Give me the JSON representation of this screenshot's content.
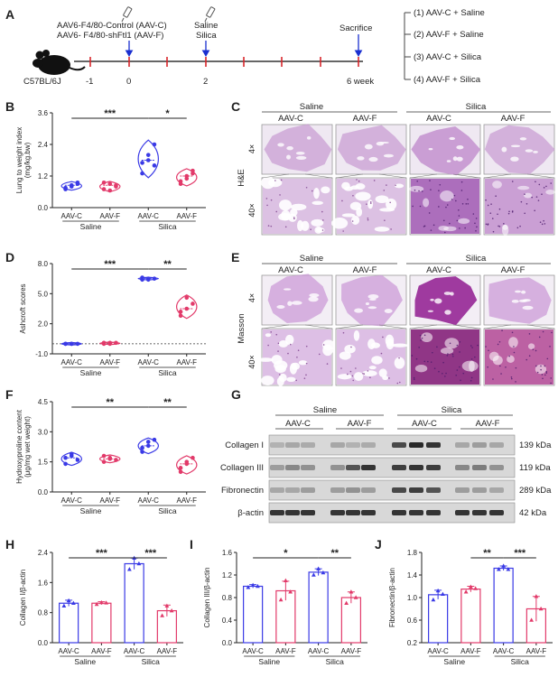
{
  "colors": {
    "aav_c": "#3a3ae6",
    "aav_f": "#e23a6a",
    "he_bg": "#efe8f2",
    "he_tissue": "#c79ad2",
    "masson_bg": "#f3eef5",
    "masson_tissue": "#c995d6",
    "masson_fibrotic": "#9a2f9a"
  },
  "panels": {
    "A": {
      "letter": "A",
      "left_label_1": "AAV6-F4/80-Control (AAV-C)",
      "left_label_2": "AAV6- F4/80-shFtl1 (AAV-F)",
      "mid_label_1": "Saline",
      "mid_label_2": "Silica",
      "right_label": "Sacrifice",
      "strain": "C57BL/6J",
      "ticks": [
        "-1",
        "0",
        "2",
        "6 week"
      ],
      "groups": [
        "(1) AAV-C + Saline",
        "(2) AAV-F + Saline",
        "(3) AAV-C + Silica",
        "(4) AAV-F + Silica"
      ]
    },
    "B": {
      "letter": "B"
    },
    "C": {
      "letter": "C"
    },
    "D": {
      "letter": "D"
    },
    "E": {
      "letter": "E"
    },
    "F": {
      "letter": "F"
    },
    "G": {
      "letter": "G"
    },
    "H": {
      "letter": "H"
    },
    "I": {
      "letter": "I"
    },
    "J": {
      "letter": "J"
    },
    "histo": {
      "group_saline": "Saline",
      "group_silica": "Silica",
      "cols": [
        "AAV-C",
        "AAV-F",
        "AAV-C",
        "AAV-F"
      ],
      "mag_low": "4×",
      "mag_high": "40×",
      "stain_c": "H&E",
      "stain_e": "Masson"
    },
    "blot": {
      "group_saline": "Saline",
      "group_silica": "Silica",
      "cols": [
        "AAV-C",
        "AAV-F",
        "AAV-C",
        "AAV-F"
      ],
      "rows": [
        {
          "name": "Collagen I",
          "kda": "139 kDa"
        },
        {
          "name": "Collagen III",
          "kda": "119 kDa"
        },
        {
          "name": "Fibronectin",
          "kda": "289 kDa"
        },
        {
          "name": "β-actin",
          "kda": "42 kDa"
        }
      ]
    }
  },
  "chart_data": [
    {
      "panel": "B",
      "type": "violin",
      "ylabel": "Lung to weight index\n(mg/kg.bw)",
      "ylim": [
        0,
        3.6
      ],
      "yticks": [
        "0.0",
        "1.2",
        "2.4",
        "3.6"
      ],
      "categories": [
        "AAV-C",
        "AAV-F",
        "AAV-C",
        "AAV-F"
      ],
      "groups": [
        "Saline",
        "Silica"
      ],
      "values": [
        [
          0.7,
          0.85,
          0.95,
          0.75,
          0.8,
          0.9
        ],
        [
          0.7,
          0.9,
          0.8,
          0.95,
          0.65,
          0.85
        ],
        [
          1.3,
          1.8,
          2.4,
          1.7,
          2.0,
          1.6
        ],
        [
          1.0,
          1.2,
          1.4,
          0.9,
          1.1,
          1.3
        ]
      ],
      "significance": [
        {
          "from": 0,
          "to": 2,
          "label": "***"
        },
        {
          "from": 2,
          "to": 3,
          "label": "*"
        }
      ]
    },
    {
      "panel": "D",
      "type": "violin",
      "ylabel": "Ashcroft scores",
      "ylim": [
        -1,
        8
      ],
      "yticks": [
        "-1.0",
        "2.0",
        "5.0",
        "8.0"
      ],
      "categories": [
        "AAV-C",
        "AAV-F",
        "AAV-C",
        "AAV-F"
      ],
      "groups": [
        "Saline",
        "Silica"
      ],
      "values": [
        [
          0.0,
          0.0,
          0.0,
          0.0,
          0.0
        ],
        [
          0.1,
          0.0,
          0.1,
          0.0,
          0.1
        ],
        [
          6.4,
          6.5,
          6.5,
          6.6,
          6.4
        ],
        [
          2.8,
          3.5,
          4.0,
          3.2,
          4.6
        ]
      ],
      "significance": [
        {
          "from": 0,
          "to": 2,
          "label": "***"
        },
        {
          "from": 2,
          "to": 3,
          "label": "**"
        }
      ]
    },
    {
      "panel": "F",
      "type": "violin",
      "ylabel": "Hydroxyproline content\n(μg/mg wet weight)",
      "ylim": [
        0,
        4.5
      ],
      "yticks": [
        "0.0",
        "1.5",
        "3.0",
        "4.5"
      ],
      "categories": [
        "AAV-C",
        "AAV-F",
        "AAV-C",
        "AAV-F"
      ],
      "groups": [
        "Saline",
        "Silica"
      ],
      "values": [
        [
          1.4,
          1.8,
          1.6,
          1.7,
          1.9
        ],
        [
          1.5,
          1.7,
          1.6,
          1.8,
          1.65
        ],
        [
          2.0,
          2.3,
          2.6,
          2.2,
          2.5
        ],
        [
          1.0,
          1.4,
          1.7,
          1.2,
          1.5
        ]
      ],
      "significance": [
        {
          "from": 0,
          "to": 2,
          "label": "**"
        },
        {
          "from": 2,
          "to": 3,
          "label": "**"
        }
      ]
    },
    {
      "panel": "H",
      "type": "bar",
      "ylabel": "Collagen I/β-actin",
      "ylim": [
        0,
        2.4
      ],
      "yticks": [
        "0.0",
        "0.8",
        "1.6",
        "2.4"
      ],
      "categories": [
        "AAV-C",
        "AAV-F",
        "AAV-C",
        "AAV-F"
      ],
      "groups": [
        "Saline",
        "Silica"
      ],
      "values": [
        1.05,
        1.05,
        2.1,
        0.85
      ],
      "errors": [
        0.08,
        0.04,
        0.15,
        0.15
      ],
      "points": [
        [
          0.98,
          1.12,
          1.05
        ],
        [
          1.02,
          1.07,
          1.06
        ],
        [
          1.95,
          2.25,
          2.1
        ],
        [
          0.72,
          0.98,
          0.85
        ]
      ],
      "significance": [
        {
          "from": 0,
          "to": 2,
          "label": "***"
        },
        {
          "from": 2,
          "to": 3,
          "label": "***"
        }
      ]
    },
    {
      "panel": "I",
      "type": "bar",
      "ylabel": "Collagen III/β-actin",
      "ylim": [
        0,
        1.6
      ],
      "yticks": [
        "0.0",
        "0.4",
        "0.8",
        "1.2",
        "1.6"
      ],
      "categories": [
        "AAV-C",
        "AAV-F",
        "AAV-C",
        "AAV-F"
      ],
      "groups": [
        "Saline",
        "Silica"
      ],
      "values": [
        1.0,
        0.92,
        1.25,
        0.8
      ],
      "errors": [
        0.03,
        0.17,
        0.06,
        0.1
      ],
      "points": [
        [
          0.98,
          1.02,
          1.0
        ],
        [
          0.76,
          1.1,
          0.9
        ],
        [
          1.2,
          1.31,
          1.24
        ],
        [
          0.7,
          0.9,
          0.8
        ]
      ],
      "significance": [
        {
          "from": 0,
          "to": 2,
          "label": "*"
        },
        {
          "from": 2,
          "to": 3,
          "label": "**"
        }
      ]
    },
    {
      "panel": "J",
      "type": "bar",
      "ylabel": "Fibronectin/β-actin",
      "ylim": [
        0.2,
        1.8
      ],
      "yticks": [
        "0.2",
        "0.6",
        "1.0",
        "1.4",
        "1.8"
      ],
      "categories": [
        "AAV-C",
        "AAV-F",
        "AAV-C",
        "AAV-F"
      ],
      "groups": [
        "Saline",
        "Silica"
      ],
      "values": [
        1.05,
        1.15,
        1.52,
        0.8
      ],
      "errors": [
        0.08,
        0.05,
        0.04,
        0.22
      ],
      "points": [
        [
          0.96,
          1.12,
          1.06
        ],
        [
          1.1,
          1.19,
          1.16
        ],
        [
          1.5,
          1.56,
          1.5
        ],
        [
          0.6,
          1.02,
          0.8
        ]
      ],
      "significance": [
        {
          "from": 1,
          "to": 2,
          "label": "**"
        },
        {
          "from": 2,
          "to": 3,
          "label": "***"
        }
      ]
    }
  ]
}
